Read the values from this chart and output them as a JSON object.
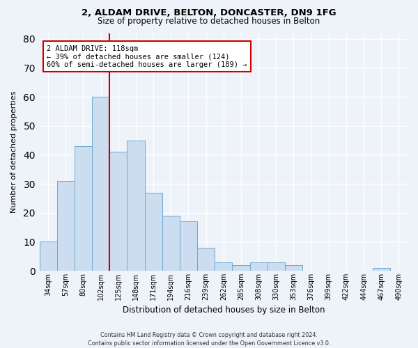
{
  "title1": "2, ALDAM DRIVE, BELTON, DONCASTER, DN9 1FG",
  "title2": "Size of property relative to detached houses in Belton",
  "xlabel": "Distribution of detached houses by size in Belton",
  "ylabel": "Number of detached properties",
  "bar_labels": [
    "34sqm",
    "57sqm",
    "80sqm",
    "102sqm",
    "125sqm",
    "148sqm",
    "171sqm",
    "194sqm",
    "216sqm",
    "239sqm",
    "262sqm",
    "285sqm",
    "308sqm",
    "330sqm",
    "353sqm",
    "376sqm",
    "399sqm",
    "422sqm",
    "444sqm",
    "467sqm",
    "490sqm"
  ],
  "bar_values": [
    10,
    31,
    43,
    60,
    41,
    45,
    27,
    19,
    17,
    8,
    3,
    2,
    3,
    3,
    2,
    0,
    0,
    0,
    0,
    1,
    0
  ],
  "bar_color": "#ccddf0",
  "bar_edge_color": "#6aaad4",
  "red_line_x": 3.5,
  "annotation_text": "2 ALDAM DRIVE: 118sqm\n← 39% of detached houses are smaller (124)\n60% of semi-detached houses are larger (189) →",
  "annotation_box_color": "white",
  "annotation_box_edge": "#cc0000",
  "red_line_color": "#cc0000",
  "ylim": [
    0,
    82
  ],
  "yticks": [
    0,
    10,
    20,
    30,
    40,
    50,
    60,
    70,
    80
  ],
  "footer_text": "Contains HM Land Registry data © Crown copyright and database right 2024.\nContains public sector information licensed under the Open Government Licence v3.0.",
  "background_color": "#eef2f9",
  "grid_color": "#ffffff",
  "title1_fontsize": 9.5,
  "title2_fontsize": 8.5
}
